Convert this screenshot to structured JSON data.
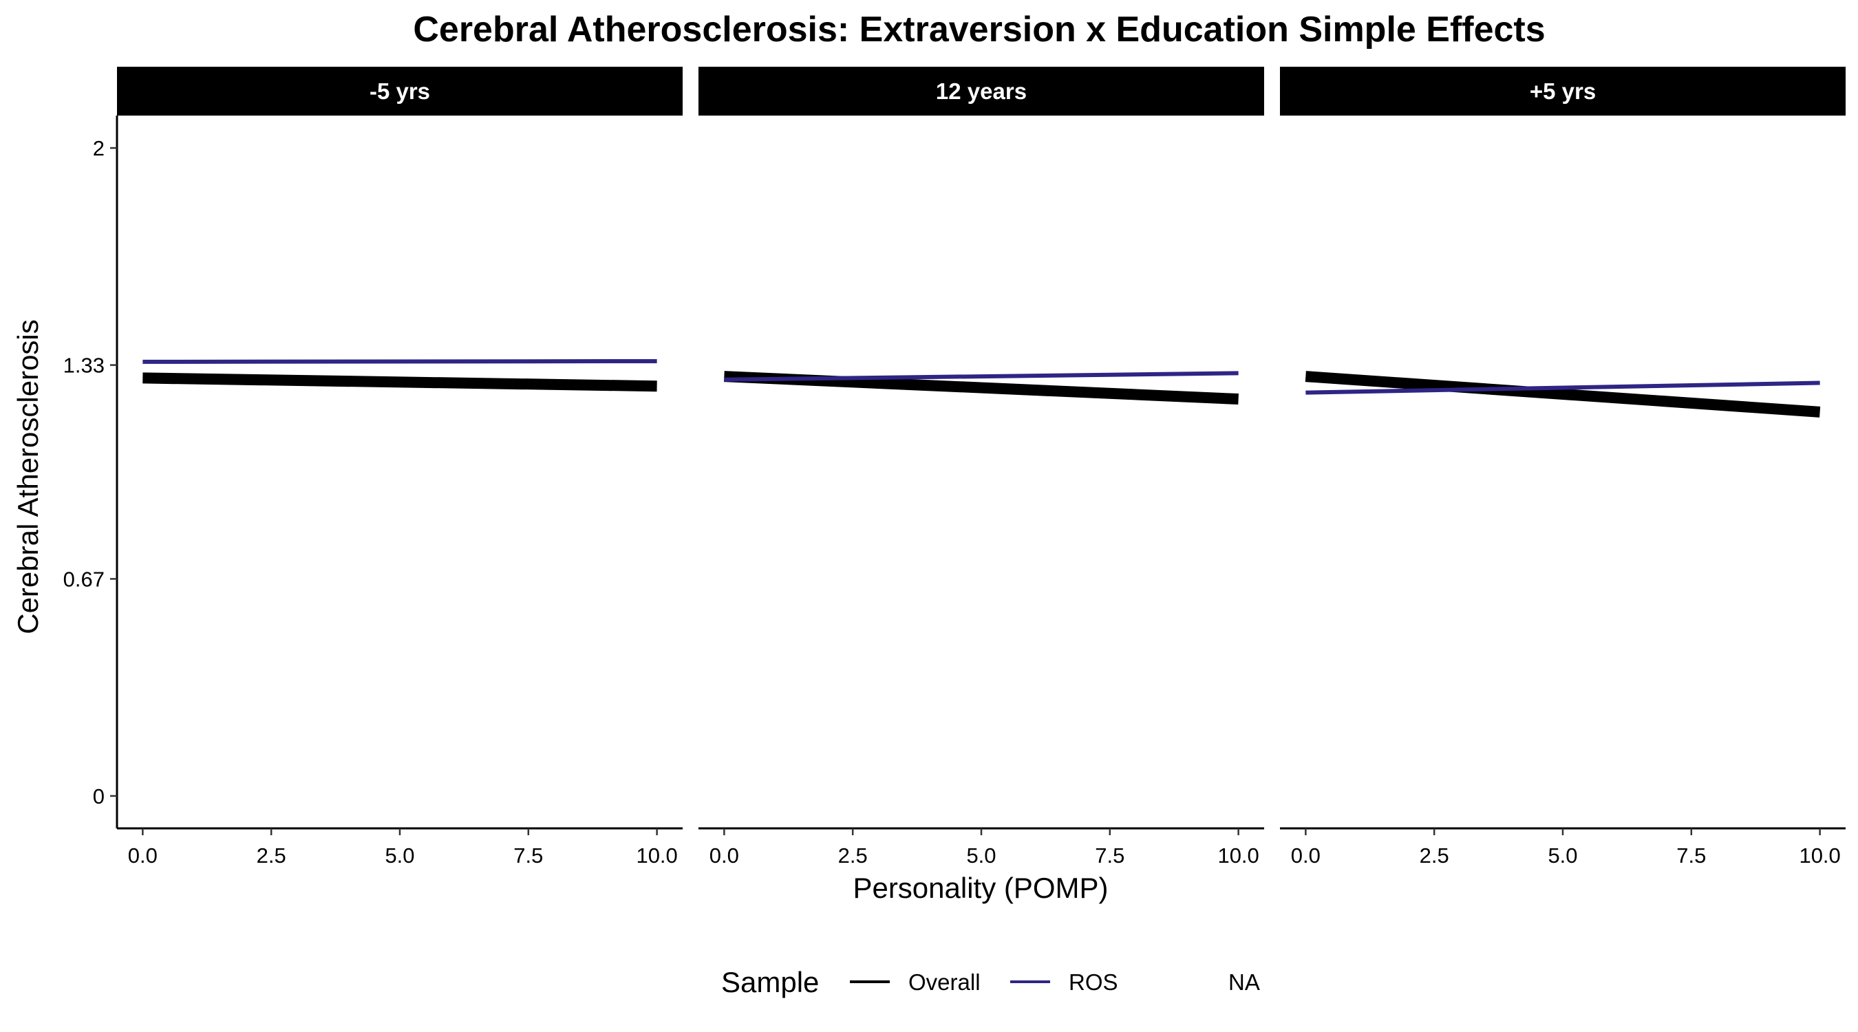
{
  "chart_data": {
    "type": "line",
    "title": "Cerebral Atherosclerosis: Extraversion x Education Simple Effects",
    "xlabel": "Personality (POMP)",
    "ylabel": "Cerebral Atherosclerosis",
    "xlim": [
      -0.5,
      10.5
    ],
    "ylim": [
      -0.1,
      2.1
    ],
    "x_ticks": [
      0.0,
      2.5,
      5.0,
      7.5,
      10.0
    ],
    "x_tick_labels": [
      "0.0",
      "2.5",
      "5.0",
      "7.5",
      "10.0"
    ],
    "y_ticks": [
      0,
      0.67,
      1.33,
      2
    ],
    "y_tick_labels": [
      "0",
      "0.67",
      "1.33",
      "2"
    ],
    "grid": false,
    "legend": {
      "title": "Sample",
      "position": "bottom",
      "entries": [
        {
          "label": "Overall",
          "color": "#000000"
        },
        {
          "label": "ROS",
          "color": "#2e2585"
        },
        {
          "label": "NA",
          "color": null
        }
      ]
    },
    "panels": [
      {
        "label": "-5 yrs",
        "series": [
          {
            "name": "Overall",
            "x": [
              0,
              10
            ],
            "y": [
              1.29,
              1.265
            ],
            "color": "#000000"
          },
          {
            "name": "ROS",
            "x": [
              0,
              10
            ],
            "y": [
              1.34,
              1.342
            ],
            "color": "#2e2585"
          }
        ]
      },
      {
        "label": "12 years",
        "series": [
          {
            "name": "Overall",
            "x": [
              0,
              10
            ],
            "y": [
              1.295,
              1.225
            ],
            "color": "#000000"
          },
          {
            "name": "ROS",
            "x": [
              0,
              10
            ],
            "y": [
              1.285,
              1.305
            ],
            "color": "#2e2585"
          }
        ]
      },
      {
        "label": "+5 yrs",
        "series": [
          {
            "name": "Overall",
            "x": [
              0,
              10
            ],
            "y": [
              1.295,
              1.185
            ],
            "color": "#000000"
          },
          {
            "name": "ROS",
            "x": [
              0,
              10
            ],
            "y": [
              1.245,
              1.275
            ],
            "color": "#2e2585"
          }
        ]
      }
    ]
  }
}
